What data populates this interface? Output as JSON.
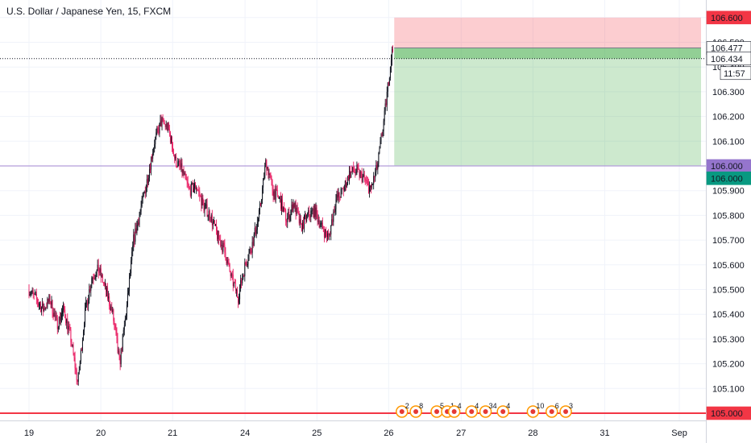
{
  "header": {
    "title": "U.S. Dollar / Japanese Yen, 15, FXCM"
  },
  "chart_data": {
    "type": "candlestick",
    "title": "U.S. Dollar / Japanese Yen, 15, FXCM",
    "ylim": [
      105.0,
      106.67
    ],
    "y_ticks": [
      "106.600",
      "106.500",
      "106.400",
      "106.300",
      "106.200",
      "106.100",
      "106.000",
      "105.900",
      "105.800",
      "105.700",
      "105.600",
      "105.500",
      "105.400",
      "105.300",
      "105.200",
      "105.100",
      "105.000"
    ],
    "x_ticks": [
      "19",
      "20",
      "21",
      "24",
      "25",
      "26",
      "27",
      "28",
      "31",
      "Sep"
    ],
    "price_path": [
      [
        0,
        105.5
      ],
      [
        2,
        105.42
      ],
      [
        3,
        105.46
      ],
      [
        4,
        105.36
      ],
      [
        5,
        105.42
      ],
      [
        6,
        105.3
      ],
      [
        7,
        105.12
      ],
      [
        8,
        105.4
      ],
      [
        9,
        105.55
      ],
      [
        10,
        105.58
      ],
      [
        11,
        105.5
      ],
      [
        12,
        105.4
      ],
      [
        13,
        105.2
      ],
      [
        14,
        105.42
      ],
      [
        15,
        105.7
      ],
      [
        16,
        105.82
      ],
      [
        17,
        105.95
      ],
      [
        18,
        106.1
      ],
      [
        19,
        106.18
      ],
      [
        20,
        106.15
      ],
      [
        21,
        106.02
      ],
      [
        22,
        105.98
      ],
      [
        23,
        105.9
      ],
      [
        24,
        105.92
      ],
      [
        25,
        105.84
      ],
      [
        26,
        105.8
      ],
      [
        27,
        105.72
      ],
      [
        28,
        105.66
      ],
      [
        29,
        105.55
      ],
      [
        30,
        105.47
      ],
      [
        31,
        105.6
      ],
      [
        32,
        105.68
      ],
      [
        33,
        105.8
      ],
      [
        34,
        106.02
      ],
      [
        35,
        105.9
      ],
      [
        36,
        105.86
      ],
      [
        37,
        105.78
      ],
      [
        38,
        105.85
      ],
      [
        39,
        105.75
      ],
      [
        40,
        105.8
      ],
      [
        41,
        105.82
      ],
      [
        42,
        105.75
      ],
      [
        43,
        105.71
      ],
      [
        44,
        105.86
      ],
      [
        45,
        105.9
      ],
      [
        46,
        105.97
      ],
      [
        47,
        105.98
      ],
      [
        48,
        105.95
      ],
      [
        49,
        105.9
      ],
      [
        50,
        106.0
      ],
      [
        51,
        106.2
      ],
      [
        52,
        106.45
      ],
      [
        52.3,
        106.48
      ]
    ],
    "current_price": "106.434",
    "line_106_477": "106.477",
    "countdown": "11:57",
    "tags": [
      {
        "label": "106.600",
        "value": 106.6,
        "bg": "#f23645",
        "fg": "#ffffff"
      },
      {
        "label": "106.477",
        "value": 106.477,
        "bg": "#ffffff",
        "fg": "#131722"
      },
      {
        "label": "106.434",
        "value": 106.434,
        "bg": "#ffffff",
        "fg": "#131722"
      },
      {
        "label": "106.000",
        "value": 106.0,
        "bg": "#9575cd",
        "fg": "#ffffff"
      },
      {
        "label": "106.000",
        "value": 105.95,
        "bg": "#089981",
        "fg": "#ffffff"
      },
      {
        "label": "105.000",
        "value": 105.0,
        "bg": "#f23645",
        "fg": "#ffffff"
      }
    ],
    "position": {
      "stop": 106.6,
      "entry": 106.477,
      "target": 106.0,
      "start_day": 52.4,
      "end_day": 100
    },
    "horizontal_lines": [
      {
        "value": 106.0,
        "color": "#b39ddb"
      },
      {
        "value": 105.0,
        "color": "#f23645"
      }
    ],
    "events": [
      {
        "day": 53.5,
        "count": "2"
      },
      {
        "day": 55.5,
        "count": "8"
      },
      {
        "day": 58.5,
        "count": "5"
      },
      {
        "day": 60,
        "count": "1"
      },
      {
        "day": 61,
        "count": "4"
      },
      {
        "day": 63.5,
        "count": "4"
      },
      {
        "day": 65.5,
        "count": "34"
      },
      {
        "day": 68,
        "count": "4"
      },
      {
        "day": 72.3,
        "count": "10"
      },
      {
        "day": 75,
        "count": "6"
      },
      {
        "day": 77,
        "count": "3"
      }
    ]
  },
  "colors": {
    "up": "#131722",
    "down": "#e91e63",
    "grid": "#f0f3fa"
  }
}
